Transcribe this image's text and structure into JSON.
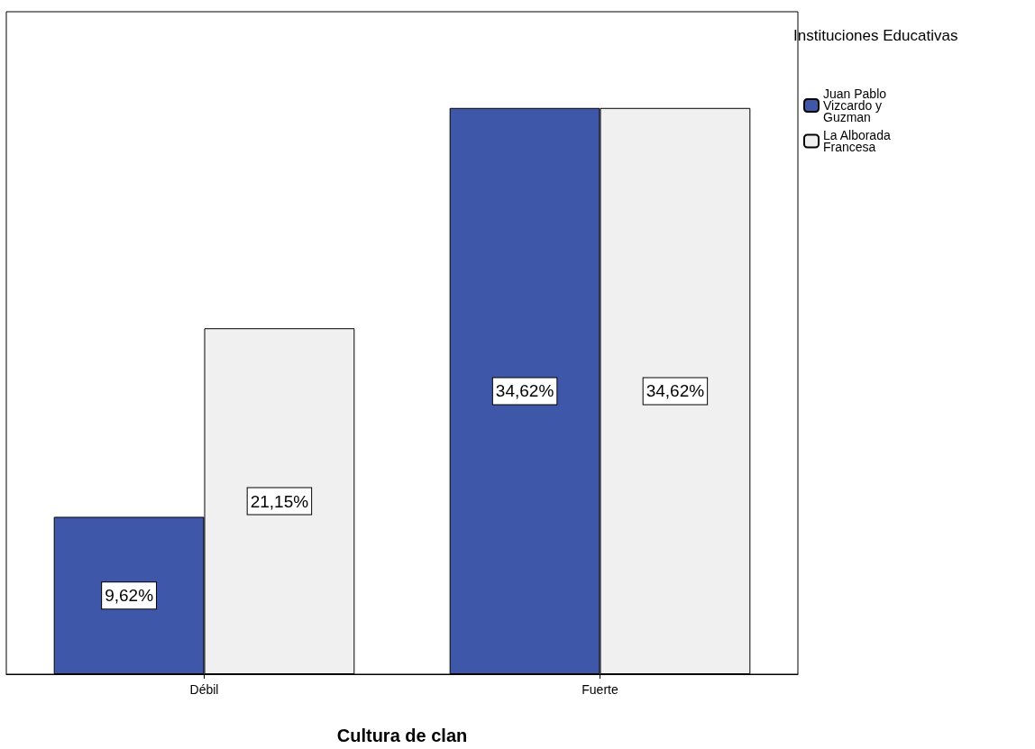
{
  "chart_data": {
    "type": "bar",
    "xlabel": "Cultura de clan",
    "legend_title": "Instituciones Educativas",
    "categories": [
      "Débil",
      "Fuerte"
    ],
    "series": [
      {
        "name": "Juan Pablo Vizcardo y Guzman",
        "color": "#3f57a8",
        "values": [
          9.62,
          34.62
        ],
        "value_labels": [
          "9,62%",
          "34,62%"
        ]
      },
      {
        "name": "La Alborada Francesa",
        "color": "#f0f0f0",
        "values": [
          21.15,
          34.62
        ],
        "value_labels": [
          "21,15%",
          "34,62%"
        ]
      }
    ],
    "legend": "top right",
    "grid": false
  }
}
